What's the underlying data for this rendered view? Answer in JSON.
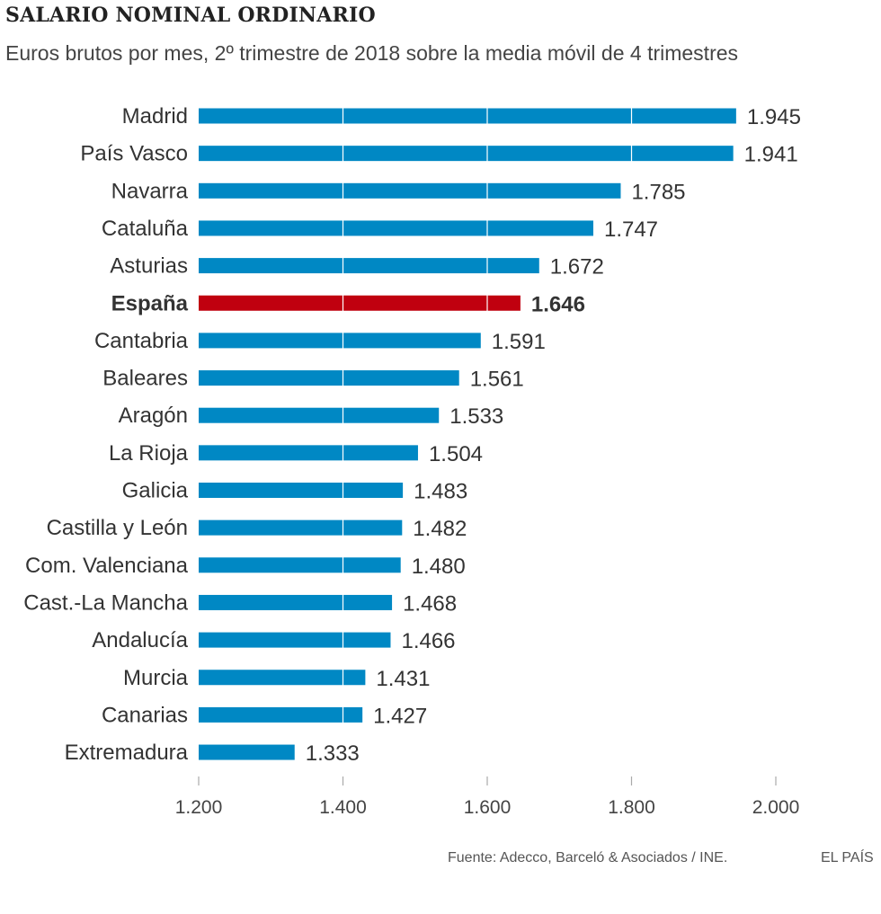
{
  "chart_data": {
    "type": "bar",
    "orientation": "horizontal",
    "title": "SALARIO NOMINAL ORDINARIO",
    "subtitle": "Euros brutos por mes, 2º trimestre de 2018 sobre la media móvil de 4 trimestres",
    "categories": [
      "Madrid",
      "País Vasco",
      "Navarra",
      "Cataluña",
      "Asturias",
      "España",
      "Cantabria",
      "Baleares",
      "Aragón",
      "La Rioja",
      "Galicia",
      "Castilla y León",
      "Com. Valenciana",
      "Cast.-La Mancha",
      "Andalucía",
      "Murcia",
      "Canarias",
      "Extremadura"
    ],
    "values": [
      1945,
      1941,
      1785,
      1747,
      1672,
      1646,
      1591,
      1561,
      1533,
      1504,
      1483,
      1482,
      1480,
      1468,
      1466,
      1431,
      1427,
      1333
    ],
    "value_labels": [
      "1.945",
      "1.941",
      "1.785",
      "1.747",
      "1.672",
      "1.646",
      "1.591",
      "1.561",
      "1.533",
      "1.504",
      "1.483",
      "1.482",
      "1.480",
      "1.468",
      "1.466",
      "1.431",
      "1.427",
      "1.333"
    ],
    "highlight": "España",
    "xlim": [
      1200,
      2000
    ],
    "xticks": [
      1200,
      1400,
      1600,
      1800,
      2000
    ],
    "xtick_labels": [
      "1.200",
      "1.400",
      "1.600",
      "1.800",
      "2.000"
    ],
    "xlabel": "",
    "ylabel": "",
    "grid": true,
    "colors": {
      "bar": "#0088c4",
      "highlight": "#c0000f",
      "gridline": "#ffffff",
      "tick": "#aaaaaa"
    }
  },
  "footer": {
    "source": "Fuente: Adecco, Barceló & Asociados / INE.",
    "publisher": "EL PAÍS"
  }
}
